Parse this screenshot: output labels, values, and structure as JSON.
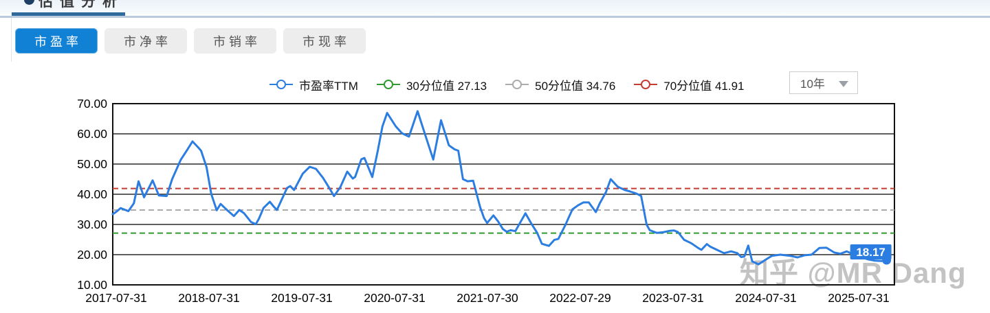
{
  "header": {
    "title": "估值分析"
  },
  "tabs": [
    {
      "label": "市盈率",
      "active": true
    },
    {
      "label": "市净率",
      "active": false
    },
    {
      "label": "市销率",
      "active": false
    },
    {
      "label": "市现率",
      "active": false
    }
  ],
  "period_select": {
    "value": "10年"
  },
  "watermark": {
    "text": "知乎 @MR Dang"
  },
  "chart_data": {
    "type": "line",
    "title": "",
    "xlabel": "",
    "ylabel": "",
    "ylim": [
      10,
      70
    ],
    "ytick_step": 10,
    "grid": true,
    "legend_position": "top",
    "yticks": [
      "70.00",
      "60.00",
      "50.00",
      "40.00",
      "30.00",
      "20.00",
      "10.00"
    ],
    "xticks": [
      "2017-07-31",
      "2018-07-31",
      "2019-07-31",
      "2020-07-31",
      "2021-07-30",
      "2022-07-29",
      "2023-07-31",
      "2024-07-31",
      "2025-07-31"
    ],
    "legend": [
      {
        "label": "市盈率TTM",
        "color": "#2b7de1"
      },
      {
        "label": "30分位值 27.13",
        "color": "#2f9a2f"
      },
      {
        "label": "50分位值 34.76",
        "color": "#ababab"
      },
      {
        "label": "70分位值 41.91",
        "color": "#c43b31"
      }
    ],
    "reference_lines": [
      {
        "name": "30分位值",
        "value": 27.13,
        "color": "#2f9a2f"
      },
      {
        "name": "50分位值",
        "value": 34.76,
        "color": "#ababab"
      },
      {
        "name": "70分位值",
        "value": 41.91,
        "color": "#c43b31"
      }
    ],
    "series": [
      {
        "name": "市盈率TTM",
        "color": "#2b7de1",
        "points": [
          [
            0,
            33.4
          ],
          [
            0.005,
            34.3
          ],
          [
            0.01,
            35.4
          ],
          [
            0.015,
            34.9
          ],
          [
            0.02,
            34.4
          ],
          [
            0.027,
            37.0
          ],
          [
            0.033,
            44.3
          ],
          [
            0.04,
            39.0
          ],
          [
            0.051,
            44.6
          ],
          [
            0.059,
            39.6
          ],
          [
            0.069,
            39.4
          ],
          [
            0.076,
            45.0
          ],
          [
            0.087,
            51.4
          ],
          [
            0.095,
            54.6
          ],
          [
            0.102,
            57.5
          ],
          [
            0.109,
            55.6
          ],
          [
            0.113,
            54.4
          ],
          [
            0.12,
            49.0
          ],
          [
            0.126,
            40.1
          ],
          [
            0.133,
            34.7
          ],
          [
            0.138,
            36.8
          ],
          [
            0.147,
            34.6
          ],
          [
            0.155,
            32.8
          ],
          [
            0.162,
            34.8
          ],
          [
            0.168,
            33.7
          ],
          [
            0.177,
            30.8
          ],
          [
            0.183,
            30.1
          ],
          [
            0.187,
            31.9
          ],
          [
            0.193,
            35.5
          ],
          [
            0.201,
            37.5
          ],
          [
            0.206,
            35.9
          ],
          [
            0.21,
            34.8
          ],
          [
            0.218,
            39.3
          ],
          [
            0.223,
            42.1
          ],
          [
            0.227,
            42.7
          ],
          [
            0.232,
            41.4
          ],
          [
            0.243,
            46.8
          ],
          [
            0.252,
            49.1
          ],
          [
            0.26,
            48.4
          ],
          [
            0.269,
            45.4
          ],
          [
            0.277,
            42.1
          ],
          [
            0.283,
            39.4
          ],
          [
            0.291,
            42.3
          ],
          [
            0.3,
            47.5
          ],
          [
            0.307,
            45.2
          ],
          [
            0.31,
            45.7
          ],
          [
            0.318,
            51.6
          ],
          [
            0.322,
            52.0
          ],
          [
            0.332,
            45.7
          ],
          [
            0.339,
            54.3
          ],
          [
            0.345,
            62.5
          ],
          [
            0.351,
            66.9
          ],
          [
            0.362,
            62.5
          ],
          [
            0.37,
            60.2
          ],
          [
            0.379,
            59.1
          ],
          [
            0.39,
            67.5
          ],
          [
            0.399,
            60.2
          ],
          [
            0.41,
            51.5
          ],
          [
            0.42,
            64.5
          ],
          [
            0.43,
            56.2
          ],
          [
            0.437,
            54.9
          ],
          [
            0.442,
            54.4
          ],
          [
            0.448,
            45.0
          ],
          [
            0.454,
            44.3
          ],
          [
            0.461,
            44.5
          ],
          [
            0.47,
            35.7
          ],
          [
            0.475,
            32.1
          ],
          [
            0.479,
            30.5
          ],
          [
            0.487,
            33.0
          ],
          [
            0.493,
            31.0
          ],
          [
            0.499,
            28.5
          ],
          [
            0.504,
            27.6
          ],
          [
            0.509,
            28.1
          ],
          [
            0.515,
            27.8
          ],
          [
            0.528,
            33.7
          ],
          [
            0.536,
            30.1
          ],
          [
            0.543,
            27.2
          ],
          [
            0.549,
            23.6
          ],
          [
            0.558,
            22.9
          ],
          [
            0.565,
            24.9
          ],
          [
            0.57,
            25.2
          ],
          [
            0.579,
            29.8
          ],
          [
            0.588,
            35.0
          ],
          [
            0.595,
            36.3
          ],
          [
            0.602,
            37.3
          ],
          [
            0.609,
            37.3
          ],
          [
            0.618,
            34.1
          ],
          [
            0.623,
            37.0
          ],
          [
            0.631,
            40.7
          ],
          [
            0.637,
            45.0
          ],
          [
            0.646,
            42.5
          ],
          [
            0.655,
            41.4
          ],
          [
            0.662,
            40.9
          ],
          [
            0.67,
            40.2
          ],
          [
            0.676,
            39.4
          ],
          [
            0.683,
            29.9
          ],
          [
            0.687,
            28.1
          ],
          [
            0.696,
            27.2
          ],
          [
            0.704,
            27.4
          ],
          [
            0.713,
            27.9
          ],
          [
            0.718,
            28.0
          ],
          [
            0.723,
            27.5
          ],
          [
            0.731,
            24.9
          ],
          [
            0.74,
            23.8
          ],
          [
            0.749,
            22.2
          ],
          [
            0.753,
            21.6
          ],
          [
            0.76,
            23.5
          ],
          [
            0.764,
            22.7
          ],
          [
            0.773,
            21.6
          ],
          [
            0.782,
            20.5
          ],
          [
            0.791,
            21.1
          ],
          [
            0.799,
            20.5
          ],
          [
            0.804,
            19.2
          ],
          [
            0.808,
            19.4
          ],
          [
            0.813,
            23.0
          ],
          [
            0.818,
            17.8
          ],
          [
            0.826,
            16.8
          ],
          [
            0.835,
            18.3
          ],
          [
            0.843,
            19.6
          ],
          [
            0.854,
            20.0
          ],
          [
            0.867,
            19.6
          ],
          [
            0.876,
            19.1
          ],
          [
            0.885,
            19.8
          ],
          [
            0.894,
            20.0
          ],
          [
            0.904,
            22.2
          ],
          [
            0.913,
            22.3
          ],
          [
            0.923,
            20.7
          ],
          [
            0.931,
            20.3
          ],
          [
            0.939,
            21.1
          ],
          [
            0.948,
            20.0
          ],
          [
            0.958,
            19.1
          ],
          [
            0.967,
            18.4
          ],
          [
            0.975,
            18.0
          ],
          [
            0.984,
            17.9
          ],
          [
            0.99,
            18.17
          ]
        ]
      }
    ],
    "end_value": 18.17,
    "end_label": "18.17"
  }
}
